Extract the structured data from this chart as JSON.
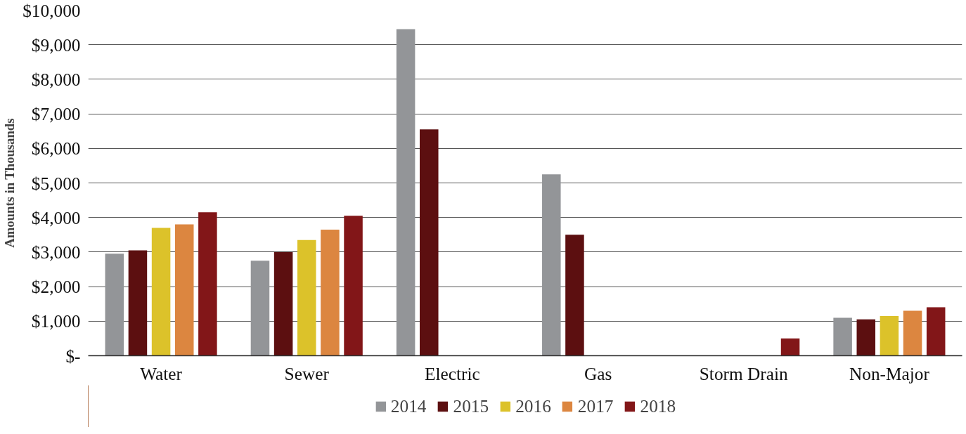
{
  "chart_data": {
    "type": "bar",
    "ylabel": "Amounts in Thousands",
    "categories": [
      "Water",
      "Sewer",
      "Electric",
      "Gas",
      "Storm Drain",
      "Non-Major"
    ],
    "series": [
      {
        "name": "2014",
        "color": "#939598",
        "values": [
          2950,
          2750,
          9450,
          5250,
          null,
          1100
        ]
      },
      {
        "name": "2015",
        "color": "#5c0f10",
        "values": [
          3050,
          3000,
          6550,
          3500,
          null,
          1050
        ]
      },
      {
        "name": "2016",
        "color": "#dcc22a",
        "values": [
          3700,
          3350,
          null,
          null,
          null,
          1150
        ]
      },
      {
        "name": "2017",
        "color": "#dc8640",
        "values": [
          3800,
          3650,
          null,
          null,
          null,
          1300
        ]
      },
      {
        "name": "2018",
        "color": "#821618",
        "values": [
          4150,
          4050,
          null,
          null,
          500,
          1400
        ]
      }
    ],
    "ylim": [
      0,
      10000
    ],
    "yticks": [
      {
        "value": 0,
        "label": "$-"
      },
      {
        "value": 1000,
        "label": "$1,000"
      },
      {
        "value": 2000,
        "label": "$2,000"
      },
      {
        "value": 3000,
        "label": "$3,000"
      },
      {
        "value": 4000,
        "label": "$4,000"
      },
      {
        "value": 5000,
        "label": "$5,000"
      },
      {
        "value": 6000,
        "label": "$6,000"
      },
      {
        "value": 7000,
        "label": "$7,000"
      },
      {
        "value": 8000,
        "label": "$8,000"
      },
      {
        "value": 9000,
        "label": "$9,000"
      },
      {
        "value": 10000,
        "label": "$10,000"
      }
    ],
    "grid": "y",
    "legend": "bottom"
  }
}
